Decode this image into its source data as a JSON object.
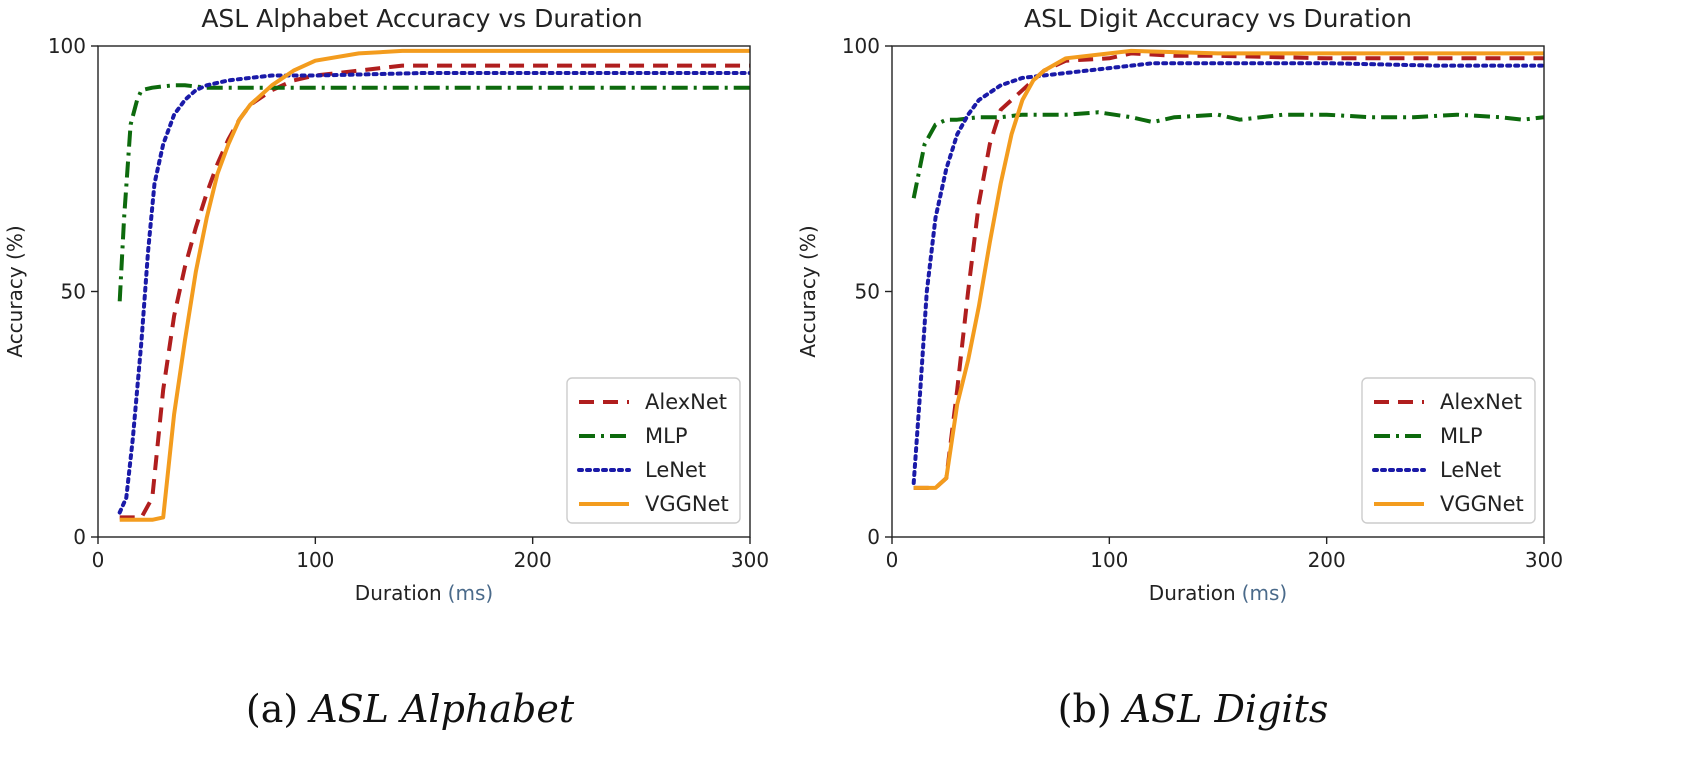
{
  "colors": {
    "AlexNet": "#b01e1e",
    "MLP": "#0d6a0d",
    "LeNet": "#1a1aa8",
    "VGGNet": "#f39c1e"
  },
  "chart_data": [
    {
      "type": "line",
      "title": "ASL Alphabet Accuracy vs Duration",
      "xlabel": "Duration",
      "xunit": "(ms)",
      "ylabel": "Accuracy (%)",
      "xlim": [
        0,
        300
      ],
      "ylim": [
        0,
        100
      ],
      "xticks": [
        "0",
        "100",
        "200",
        "300"
      ],
      "yticks": [
        "0",
        "50",
        "100"
      ],
      "legend_position": "lower-right",
      "caption_prefix": "(a)",
      "caption_title": "ASL Alphabet",
      "series": [
        {
          "name": "AlexNet",
          "style": "dashed",
          "x": [
            10,
            15,
            20,
            25,
            30,
            35,
            40,
            45,
            50,
            55,
            60,
            65,
            70,
            80,
            90,
            100,
            120,
            140,
            160,
            180,
            200,
            220,
            240,
            260,
            280,
            300
          ],
          "y": [
            4,
            4,
            4,
            8,
            30,
            45,
            55,
            63,
            70,
            76,
            81,
            85,
            88,
            91,
            93,
            94,
            95,
            96,
            96,
            96,
            96,
            96,
            96,
            96,
            96,
            96
          ]
        },
        {
          "name": "MLP",
          "style": "dashdot",
          "x": [
            10,
            12,
            15,
            18,
            20,
            25,
            30,
            35,
            40,
            50,
            60,
            80,
            100,
            150,
            200,
            250,
            300
          ],
          "y": [
            48,
            65,
            84,
            89,
            91,
            91.5,
            91.8,
            92,
            92,
            91.5,
            91.5,
            91.5,
            91.5,
            91.5,
            91.5,
            91.5,
            91.5
          ]
        },
        {
          "name": "LeNet",
          "style": "dotted",
          "x": [
            10,
            13,
            16,
            20,
            23,
            26,
            30,
            35,
            40,
            45,
            50,
            60,
            70,
            80,
            100,
            150,
            200,
            250,
            300
          ],
          "y": [
            5,
            8,
            20,
            40,
            58,
            72,
            80,
            86,
            89,
            91,
            92,
            93,
            93.5,
            94,
            94,
            94.5,
            94.5,
            94.5,
            94.5
          ]
        },
        {
          "name": "VGGNet",
          "style": "solid",
          "x": [
            10,
            20,
            25,
            30,
            35,
            40,
            45,
            50,
            55,
            60,
            65,
            70,
            80,
            90,
            100,
            120,
            140,
            160,
            200,
            250,
            300
          ],
          "y": [
            3.5,
            3.5,
            3.5,
            4,
            25,
            40,
            54,
            65,
            74,
            80,
            85,
            88,
            92,
            95,
            97,
            98.5,
            99,
            99,
            99,
            99,
            99
          ]
        }
      ]
    },
    {
      "type": "line",
      "title": "ASL Digit Accuracy vs Duration",
      "xlabel": "Duration",
      "xunit": "(ms)",
      "ylabel": "Accuracy (%)",
      "xlim": [
        0,
        300
      ],
      "ylim": [
        0,
        100
      ],
      "xticks": [
        "0",
        "100",
        "200",
        "300"
      ],
      "yticks": [
        "0",
        "50",
        "100"
      ],
      "legend_position": "lower-right",
      "caption_prefix": "(b)",
      "caption_title": "ASL Digits",
      "series": [
        {
          "name": "AlexNet",
          "style": "dashed",
          "x": [
            10,
            15,
            20,
            25,
            30,
            35,
            40,
            45,
            50,
            55,
            60,
            70,
            80,
            100,
            110,
            130,
            150,
            200,
            250,
            300
          ],
          "y": [
            10,
            10,
            10,
            12,
            30,
            50,
            68,
            80,
            87,
            89,
            91,
            95,
            97,
            97.5,
            98.5,
            98,
            98,
            97.5,
            97.5,
            97.5
          ]
        },
        {
          "name": "MLP",
          "style": "dashdot",
          "x": [
            10,
            15,
            20,
            25,
            30,
            40,
            50,
            60,
            80,
            95,
            110,
            120,
            130,
            150,
            160,
            180,
            200,
            220,
            240,
            260,
            280,
            290,
            300
          ],
          "y": [
            69,
            80,
            84,
            85,
            85,
            85.5,
            85.5,
            86,
            86,
            86.5,
            85.5,
            84.5,
            85.5,
            86,
            85,
            86,
            86,
            85.5,
            85.5,
            86,
            85.5,
            85,
            85.5
          ]
        },
        {
          "name": "LeNet",
          "style": "dotted",
          "x": [
            10,
            13,
            16,
            20,
            25,
            30,
            35,
            40,
            50,
            60,
            80,
            100,
            120,
            150,
            200,
            250,
            300
          ],
          "y": [
            11,
            30,
            50,
            65,
            75,
            82,
            86,
            89,
            92,
            93.5,
            94.5,
            95.5,
            96.5,
            96.5,
            96.5,
            96,
            96
          ]
        },
        {
          "name": "VGGNet",
          "style": "solid",
          "x": [
            10,
            20,
            25,
            30,
            35,
            40,
            45,
            50,
            55,
            60,
            65,
            70,
            80,
            100,
            110,
            150,
            200,
            250,
            300
          ],
          "y": [
            10,
            10,
            12,
            27,
            36,
            47,
            60,
            72,
            82,
            89,
            93,
            95,
            97.5,
            98.5,
            99,
            98.5,
            98.5,
            98.5,
            98.5
          ]
        }
      ]
    }
  ]
}
